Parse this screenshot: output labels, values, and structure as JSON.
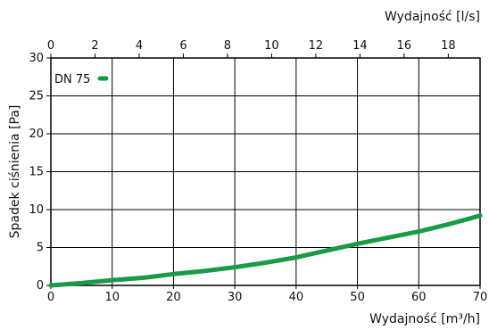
{
  "chart_data": {
    "type": "line",
    "xlabel": "Wydajność [m³/h]",
    "x2label": "Wydajność [l/s]",
    "ylabel": "Spadek ciśnienia  [Pa]",
    "xlim": [
      0,
      70
    ],
    "ylim": [
      0,
      30
    ],
    "x2lim": [
      0,
      19.44
    ],
    "x_ticks": [
      0,
      10,
      20,
      30,
      40,
      50,
      60,
      70
    ],
    "x2_ticks": [
      0,
      2,
      4,
      6,
      8,
      10,
      12,
      14,
      16,
      18
    ],
    "y_ticks": [
      0,
      5,
      10,
      15,
      20,
      25,
      30
    ],
    "grid": true,
    "legend_position": "top-left",
    "series": [
      {
        "name": "DN 75",
        "color": "#1a9a46",
        "x": [
          0,
          5,
          10,
          15,
          20,
          25,
          30,
          35,
          40,
          45,
          50,
          55,
          60,
          65,
          70
        ],
        "y": [
          0,
          0.3,
          0.7,
          1.0,
          1.5,
          1.9,
          2.4,
          3.0,
          3.7,
          4.6,
          5.5,
          6.3,
          7.1,
          8.1,
          9.2
        ]
      }
    ]
  }
}
